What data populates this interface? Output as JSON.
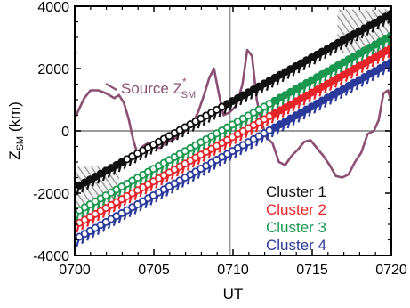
{
  "chart_data": {
    "type": "scatter",
    "xlabel": "UT",
    "ylabel": {
      "base": "Z",
      "sub": "SM",
      "unit": " (km)"
    },
    "xlim_minutes": [
      0,
      20
    ],
    "ylim": [
      -4000,
      4000
    ],
    "x_ticks": [
      {
        "minute": 0,
        "label": "0700"
      },
      {
        "minute": 5,
        "label": "0705"
      },
      {
        "minute": 10,
        "label": "0710"
      },
      {
        "minute": 15,
        "label": "0715"
      },
      {
        "minute": 20,
        "label": "0720"
      }
    ],
    "y_ticks": [
      {
        "value": 4000,
        "label": "4000"
      },
      {
        "value": 2000,
        "label": "2000"
      },
      {
        "value": 0,
        "label": "0"
      },
      {
        "value": -2000,
        "label": "-2000"
      },
      {
        "value": -4000,
        "label": "-4000"
      }
    ],
    "reference_lines": {
      "x_minute": 9.8,
      "y_value": 0
    },
    "annotation": {
      "text": "Source Z",
      "sub": "SM",
      "sup": "*",
      "color": "#8b4f73"
    },
    "grid": false,
    "legend_position": "lower-right",
    "series": [
      {
        "name": "Cluster 1",
        "color": "#111111",
        "start_minute": 0.3,
        "start_z": -1750,
        "slope_per_min": 280
      },
      {
        "name": "Cluster 2",
        "color": "#e8242b",
        "start_minute": 0.3,
        "start_z": -2950,
        "slope_per_min": 285
      },
      {
        "name": "Cluster 3",
        "color": "#1a9850",
        "start_minute": 0.3,
        "start_z": -2550,
        "slope_per_min": 285
      },
      {
        "name": "Cluster 4",
        "color": "#2b3a9a",
        "start_minute": 0.3,
        "start_z": -3400,
        "slope_per_min": 285
      }
    ],
    "source_curve": {
      "name": "Source Z_SM*",
      "color": "#8b4f73",
      "x_minutes": [
        0,
        0.6,
        1.0,
        1.5,
        2.0,
        2.5,
        2.8,
        3.1,
        3.4,
        3.7,
        4.0,
        4.3,
        4.6,
        5.0,
        5.4,
        5.8,
        6.2,
        6.6,
        7.0,
        7.4,
        7.8,
        8.2,
        8.5,
        8.8,
        9.1,
        9.4,
        9.8,
        10.2,
        10.6,
        10.9,
        11.2,
        11.5,
        11.8,
        12.1,
        12.5,
        12.9,
        13.3,
        13.7,
        14.1,
        14.5,
        14.9,
        15.3,
        15.7,
        16.1,
        16.5,
        16.9,
        17.3,
        17.7,
        18.1,
        18.5,
        18.9,
        19.2,
        19.5,
        19.8,
        20.0
      ],
      "z_values": [
        400,
        1050,
        1300,
        1300,
        1200,
        1050,
        1150,
        900,
        400,
        -300,
        -800,
        -500,
        -400,
        -500,
        -550,
        -350,
        -300,
        -100,
        0,
        200,
        600,
        1200,
        1700,
        2000,
        1200,
        500,
        600,
        800,
        1500,
        2600,
        2400,
        1000,
        300,
        -200,
        -400,
        -1000,
        -1100,
        -800,
        -600,
        -350,
        -300,
        -550,
        -800,
        -1100,
        -1450,
        -1500,
        -1400,
        -1000,
        -700,
        -100,
        0,
        350,
        1200,
        1300,
        900
      ]
    },
    "uncertainty_bands": [
      {
        "x_minutes": [
          0,
          2.8
        ],
        "z_center": -1800,
        "half_width": 650
      },
      {
        "x_minutes": [
          16.6,
          20
        ],
        "z_center": 3200,
        "half_width": 700
      }
    ]
  }
}
